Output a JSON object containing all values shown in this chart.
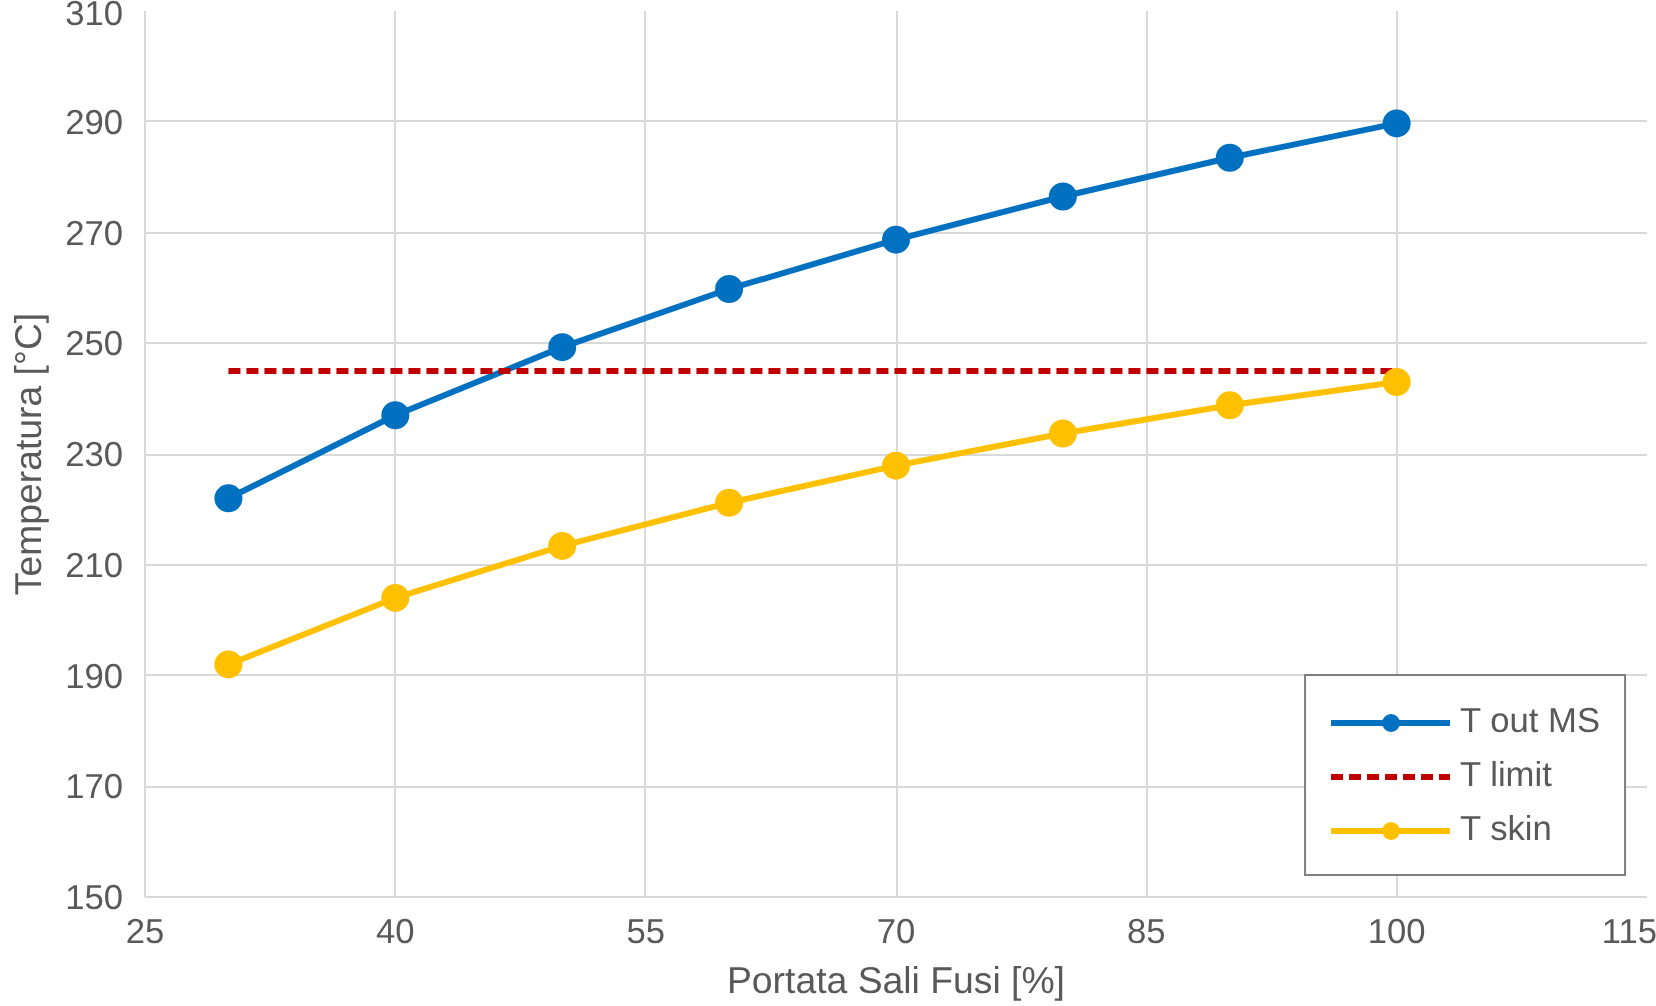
{
  "chart_data": {
    "type": "line",
    "xlabel": "Portata Sali Fusi [%]",
    "ylabel": "Temperatura [°C]",
    "x": [
      30,
      40,
      50,
      60,
      70,
      80,
      90,
      100
    ],
    "series": [
      {
        "name": "T out MS",
        "color": "#0070c0",
        "marker": "circle",
        "line_style": "solid",
        "values": [
          222,
          237,
          249.3,
          259.8,
          268.7,
          276.5,
          283.5,
          289.7
        ]
      },
      {
        "name": "T limit",
        "color": "#c00000",
        "marker": "none",
        "line_style": "dashed",
        "values": [
          245,
          245,
          245,
          245,
          245,
          245,
          245,
          245
        ]
      },
      {
        "name": "T skin",
        "color": "#ffc000",
        "marker": "circle",
        "line_style": "solid",
        "values": [
          192,
          204,
          213.4,
          221.2,
          227.9,
          233.7,
          238.8,
          243
        ]
      }
    ],
    "xlim": [
      25,
      115
    ],
    "xticks": [
      25,
      40,
      55,
      70,
      85,
      100,
      115
    ],
    "ylim": [
      150,
      310
    ],
    "yticks": [
      150,
      170,
      190,
      210,
      230,
      250,
      270,
      290,
      310
    ],
    "grid": true,
    "legend": "bottom right"
  }
}
